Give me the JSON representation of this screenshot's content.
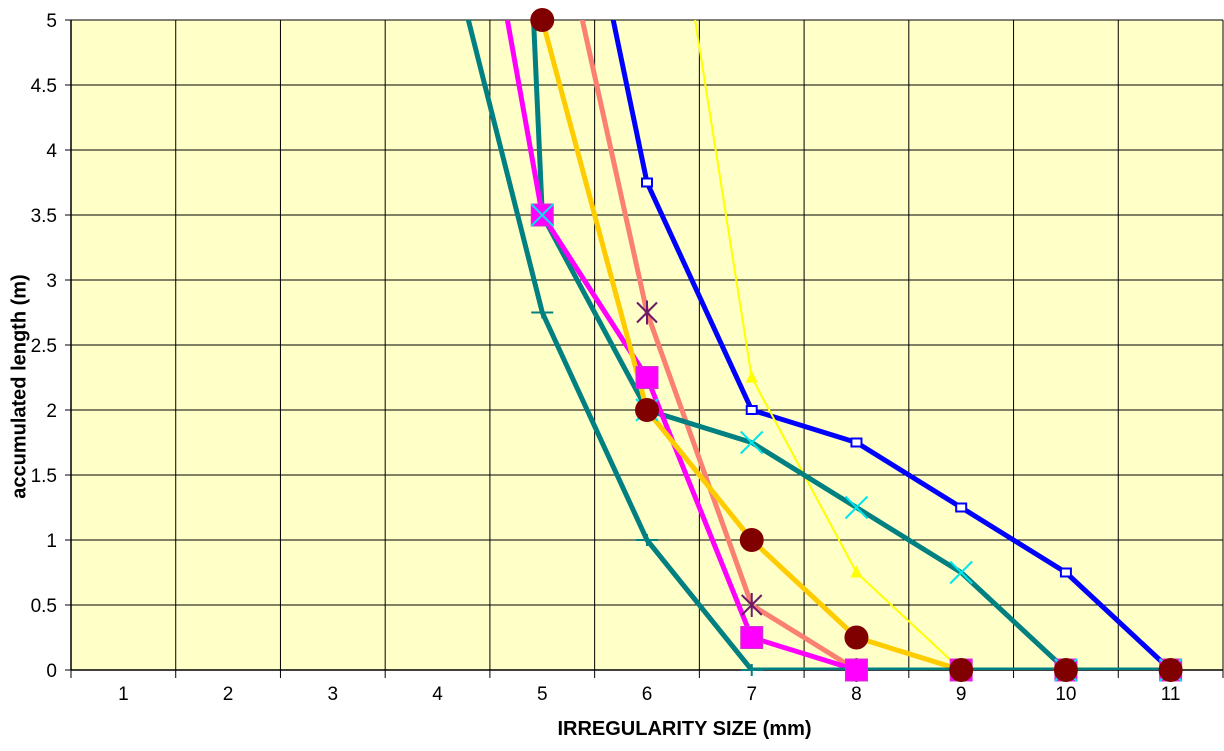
{
  "chart_data": {
    "type": "line",
    "title": "",
    "xlabel": "IRREGULARITY SIZE (mm)",
    "ylabel": "accumulated length (m)",
    "xlim": [
      0.5,
      11.5
    ],
    "ylim": [
      0,
      5
    ],
    "x_ticks": [
      1,
      2,
      3,
      4,
      5,
      6,
      7,
      8,
      9,
      10,
      11
    ],
    "y_ticks": [
      0,
      0.5,
      1,
      1.5,
      2,
      2.5,
      3,
      3.5,
      4,
      4.5,
      5
    ],
    "y_tick_labels": [
      "0",
      "0.5",
      "1",
      "1.5",
      "2",
      "2.5",
      "3",
      "3.5",
      "4",
      "4.5",
      "5"
    ],
    "grid": true,
    "plot_background": "#ffffc8",
    "legend": "none",
    "series": [
      {
        "color": "#0000ff",
        "line_width": 5,
        "marker": "small-square",
        "points": [
          [
            5.6,
            5.3
          ],
          [
            6,
            3.75
          ],
          [
            7,
            2.0
          ],
          [
            8,
            1.75
          ],
          [
            9,
            1.25
          ],
          [
            10,
            0.75
          ],
          [
            11,
            0
          ]
        ]
      },
      {
        "color": "#ffff00",
        "line_width": 2,
        "marker": "triangle",
        "points": [
          [
            6.4,
            5.3
          ],
          [
            7,
            2.25
          ],
          [
            8,
            0.75
          ],
          [
            9,
            0
          ]
        ]
      },
      {
        "color": "#fa8072",
        "line_width": 5,
        "marker": "star",
        "points": [
          [
            5.3,
            5.3
          ],
          [
            6,
            2.75
          ],
          [
            7,
            0.5
          ],
          [
            8,
            0
          ]
        ]
      },
      {
        "color": "#008080",
        "line_width": 5,
        "marker": "x",
        "points": [
          [
            4.9,
            5.3
          ],
          [
            5,
            3.5
          ],
          [
            6,
            2.0
          ],
          [
            7,
            1.75
          ],
          [
            8,
            1.25
          ],
          [
            9,
            0.75
          ],
          [
            10,
            0
          ],
          [
            11,
            0
          ]
        ]
      },
      {
        "color": "#ff00ff",
        "line_width": 5,
        "marker": "square",
        "points": [
          [
            4.6,
            5.3
          ],
          [
            5,
            3.5
          ],
          [
            6,
            2.25
          ],
          [
            7,
            0.25
          ],
          [
            8,
            0
          ],
          [
            9,
            0
          ],
          [
            10,
            0
          ],
          [
            11,
            0
          ]
        ]
      },
      {
        "color": "#ffcc00",
        "line_width": 5,
        "marker": "circle",
        "points": [
          [
            5,
            5
          ],
          [
            6,
            2
          ],
          [
            7,
            1
          ],
          [
            8,
            0.25
          ],
          [
            9,
            0
          ],
          [
            10,
            0
          ],
          [
            11,
            0
          ]
        ]
      },
      {
        "color": "#008080",
        "line_width": 5,
        "marker": "plus",
        "points": [
          [
            4.2,
            5.3
          ],
          [
            5,
            2.75
          ],
          [
            6,
            1.0
          ],
          [
            7,
            0
          ],
          [
            8,
            0
          ],
          [
            9,
            0
          ],
          [
            10,
            0
          ],
          [
            11,
            0
          ]
        ]
      }
    ],
    "marker_colors": {
      "star": "#6a1b6a",
      "x": "#00e5ee",
      "circle": "#800000",
      "square": "#ff00ff",
      "square_outline": "#cc33cc"
    }
  }
}
